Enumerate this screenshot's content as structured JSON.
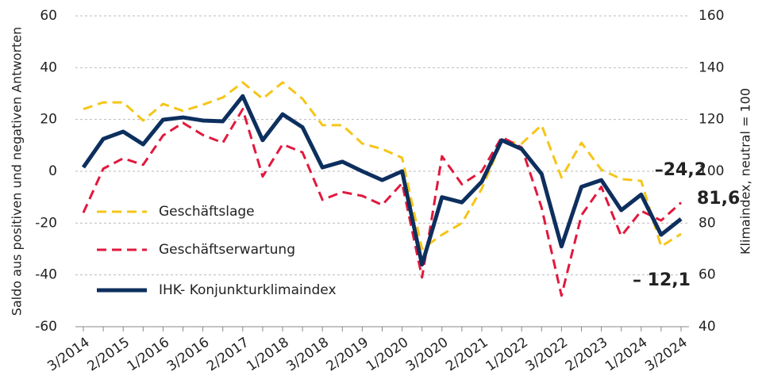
{
  "chart_data": {
    "type": "line",
    "ylabel": "Saldo aus positiven und negativen Antworten",
    "y2label": "Klimaindex, neutral = 100",
    "categories": [
      "3/2014",
      null,
      "2/2015",
      null,
      "1/2016",
      null,
      "3/2016",
      null,
      "2/2017",
      null,
      "1/2018",
      null,
      "3/2018",
      null,
      "2/2019",
      null,
      "1/2020",
      null,
      "3/2020",
      null,
      "2/2021",
      null,
      "1/2022",
      null,
      "3/2022",
      null,
      "2/2023",
      null,
      "1/2024",
      null,
      "3/2024"
    ],
    "ylim": [
      -60,
      60
    ],
    "yticks": [
      -60,
      -40,
      -20,
      0,
      20,
      40,
      60
    ],
    "y2lim": [
      40,
      160
    ],
    "y2ticks": [
      40,
      60,
      80,
      100,
      120,
      140,
      160
    ],
    "grid": true,
    "legend": "left",
    "series": [
      {
        "name": "Geschäftslage",
        "color": "#f5c518",
        "dash": true,
        "values": [
          24,
          26.6,
          26.6,
          19.6,
          26,
          23.3,
          25.7,
          28.5,
          34.3,
          28,
          34.3,
          28,
          17.8,
          17.8,
          10.7,
          8.6,
          5.2,
          -30,
          -24.5,
          -20,
          -6.7,
          11.6,
          10.7,
          17.8,
          -2.4,
          11,
          0.6,
          -3,
          -3.7,
          -29,
          -24.2
        ],
        "value_labels": [
          null,
          null,
          null,
          null,
          null,
          null,
          null,
          null,
          null,
          null,
          null,
          null,
          null,
          null,
          null,
          null,
          null,
          null,
          null,
          null,
          null,
          null,
          null,
          null,
          null,
          null,
          null,
          null,
          null,
          null,
          "–24,2"
        ]
      },
      {
        "name": "Geschäftserwartung",
        "color": "#e2183d",
        "dash": true,
        "values": [
          -16,
          1,
          5,
          2.5,
          13.8,
          18.7,
          14,
          11,
          24,
          -2,
          10.4,
          7.3,
          -11,
          -8,
          -9.5,
          -13,
          -4.6,
          -41,
          5.8,
          -5,
          0,
          13.2,
          9.2,
          -14,
          -48,
          -17,
          -6,
          -25,
          -15.3,
          -19,
          -12.1
        ],
        "value_labels": [
          null,
          null,
          null,
          null,
          null,
          null,
          null,
          null,
          null,
          null,
          null,
          null,
          null,
          null,
          null,
          null,
          null,
          null,
          null,
          null,
          null,
          null,
          null,
          null,
          null,
          null,
          null,
          null,
          null,
          null,
          "– 12,1"
        ]
      },
      {
        "name": "IHK- Konjunkturklimaindex",
        "color": "#0d2f5e",
        "dash": false,
        "axis": "y2",
        "values": [
          101.5,
          112.5,
          115.3,
          110.4,
          119.9,
          120.8,
          119.6,
          119.3,
          129,
          112,
          122,
          117,
          101.5,
          103.7,
          100,
          96.6,
          100,
          64,
          90,
          88,
          96,
          112,
          108.6,
          99,
          71,
          94,
          96.6,
          85,
          91,
          75.5,
          81.6
        ],
        "value_labels": [
          null,
          null,
          null,
          null,
          null,
          null,
          null,
          null,
          null,
          null,
          null,
          null,
          null,
          null,
          null,
          null,
          null,
          null,
          null,
          null,
          null,
          null,
          null,
          null,
          null,
          null,
          null,
          null,
          null,
          null,
          "81,6"
        ]
      }
    ]
  }
}
